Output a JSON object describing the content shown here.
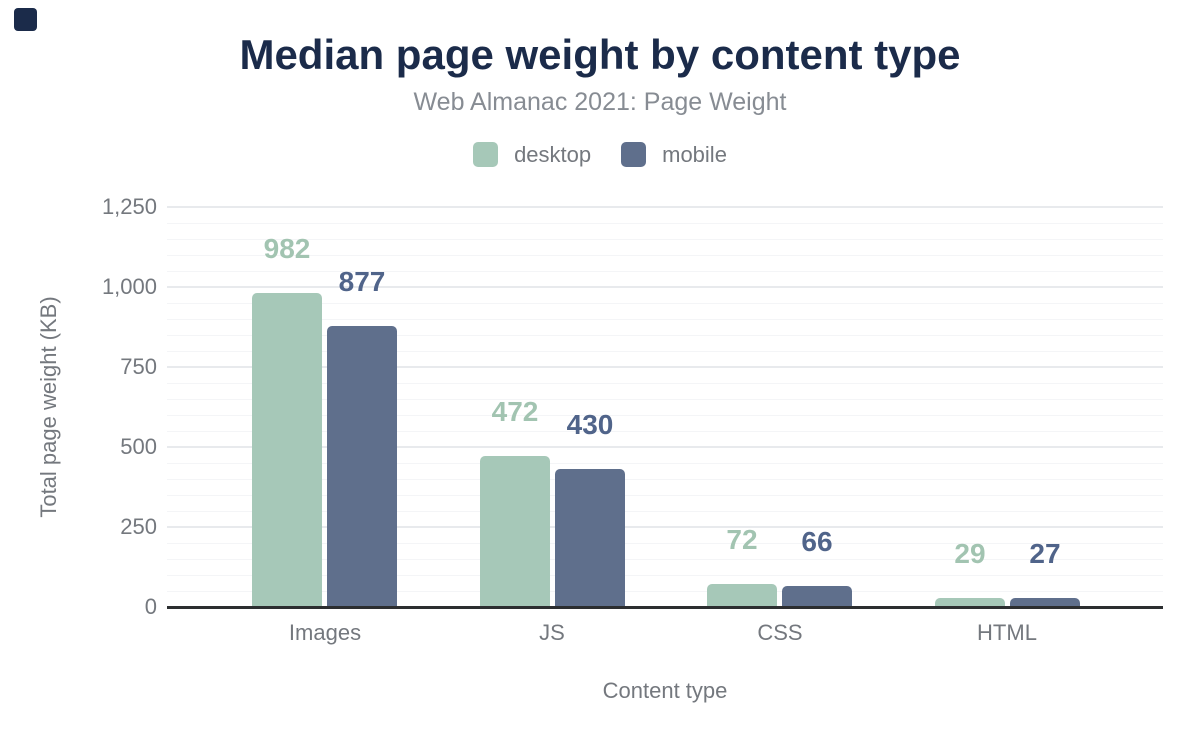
{
  "title": "Median page weight by content type",
  "subtitle": "Web Almanac 2021: Page Weight",
  "legend": [
    {
      "label": "desktop",
      "color": "#a6c8b8"
    },
    {
      "label": "mobile",
      "color": "#5f6f8c"
    }
  ],
  "chart_data": {
    "type": "bar",
    "categories": [
      "Images",
      "JS",
      "CSS",
      "HTML"
    ],
    "series": [
      {
        "name": "desktop",
        "color": "#a6c8b8",
        "label_color": "#a2c4b1",
        "values": [
          982,
          472,
          72,
          29
        ]
      },
      {
        "name": "mobile",
        "color": "#5f6f8c",
        "label_color": "#50648a",
        "values": [
          877,
          430,
          66,
          27
        ]
      }
    ],
    "title": "Median page weight by content type",
    "subtitle": "Web Almanac 2021: Page Weight",
    "xlabel": "Content type",
    "ylabel": "Total page weight (KB)",
    "ylim": [
      0,
      1250
    ],
    "ytick_step": 250,
    "minor_tick_step": 50,
    "ytick_labels": [
      "0",
      "250",
      "500",
      "750",
      "1,000",
      "1,250"
    ],
    "grid": true,
    "legend_position": "top",
    "data_labels": true
  },
  "colors": {
    "title": "#1b2b4a",
    "subtitle": "#878c93",
    "axis_text": "#74787e",
    "grid_major": "#e8eaed",
    "grid_minor": "#f4f5f7",
    "baseline": "#2c2e30",
    "corner_mark": "#1b2b4a"
  }
}
